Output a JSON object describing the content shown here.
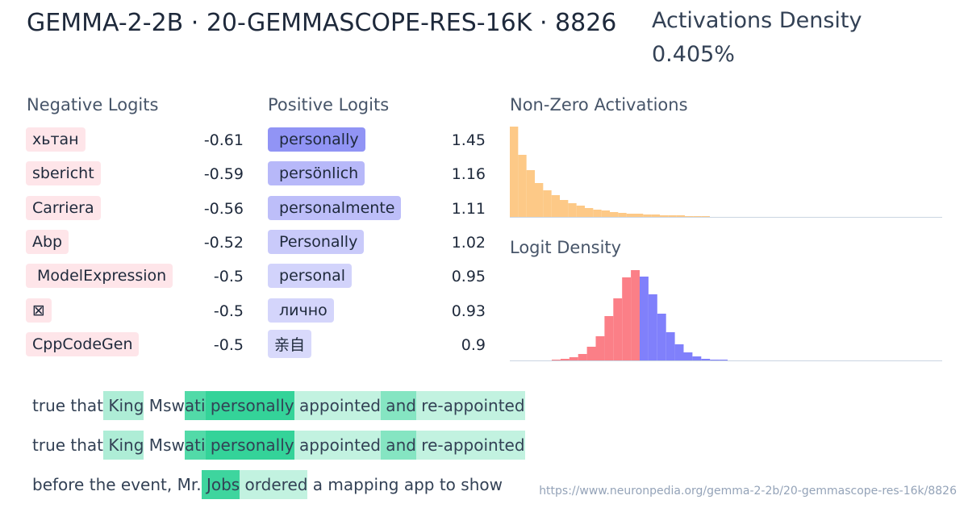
{
  "header": {
    "title": "GEMMA-2-2B · 20-GEMMASCOPE-RES-16K · 8826",
    "density_label": "Activations Density",
    "density_value": "0.405%"
  },
  "negative_logits": {
    "title": "Negative Logits",
    "items": [
      {
        "token": "хьтан",
        "value": -0.61
      },
      {
        "token": "sbericht",
        "value": -0.59
      },
      {
        "token": "Carriera",
        "value": -0.56
      },
      {
        "token": "Abp",
        "value": -0.52
      },
      {
        "token": " ModelExpression",
        "value": -0.5
      },
      {
        "token": "⊠",
        "value": -0.5
      },
      {
        "token": "CppCodeGen",
        "value": -0.5
      }
    ]
  },
  "positive_logits": {
    "title": "Positive Logits",
    "items": [
      {
        "token": " personally",
        "value": 1.45
      },
      {
        "token": " persönlich",
        "value": 1.16
      },
      {
        "token": " personalmente",
        "value": 1.11
      },
      {
        "token": " Personally",
        "value": 1.02
      },
      {
        "token": " personal",
        "value": 0.95
      },
      {
        "token": " лично",
        "value": 0.93
      },
      {
        "token": "亲自",
        "value": 0.9
      }
    ]
  },
  "activation_histogram": {
    "title": "Non-Zero Activations",
    "color": "#fdc987",
    "values": [
      112,
      77,
      58,
      42,
      33,
      27,
      21,
      17,
      14,
      11,
      9,
      8,
      6,
      5,
      4,
      4,
      3,
      3,
      2,
      2,
      2,
      1,
      1,
      1
    ]
  },
  "logit_density": {
    "title": "Logit Density",
    "negative_color": "#fb7f87",
    "positive_color": "#8080fb",
    "negative": [
      1,
      2,
      4,
      8,
      17,
      30,
      55,
      77,
      103,
      112
    ],
    "positive": [
      104,
      82,
      58,
      35,
      20,
      10,
      5,
      2,
      1,
      1
    ]
  },
  "examples": [
    [
      {
        "text": "true that",
        "act": 0
      },
      {
        "text": " King",
        "act": 0.4
      },
      {
        "text": " M",
        "act": 0
      },
      {
        "text": "sw",
        "act": 0
      },
      {
        "text": "ati",
        "act": 0.85
      },
      {
        "text": " personally",
        "act": 1
      },
      {
        "text": " appointed",
        "act": 0.3
      },
      {
        "text": " and",
        "act": 0.6
      },
      {
        "text": " re-appointed",
        "act": 0.3
      }
    ],
    [
      {
        "text": "true that",
        "act": 0
      },
      {
        "text": " King",
        "act": 0.4
      },
      {
        "text": " M",
        "act": 0
      },
      {
        "text": "sw",
        "act": 0
      },
      {
        "text": "ati",
        "act": 0.85
      },
      {
        "text": " personally",
        "act": 1
      },
      {
        "text": " appointed",
        "act": 0.3
      },
      {
        "text": " and",
        "act": 0.6
      },
      {
        "text": " re-appointed",
        "act": 0.3
      }
    ],
    [
      {
        "text": "before the event, Mr.",
        "act": 0
      },
      {
        "text": " Jobs",
        "act": 0.95
      },
      {
        "text": " ordered",
        "act": 0.3
      },
      {
        "text": " a mapping app to show",
        "act": 0
      }
    ]
  ],
  "footer": {
    "url": "https://www.neuronpedia.org/gemma-2-2b/20-gemmascope-res-16k/8826"
  }
}
